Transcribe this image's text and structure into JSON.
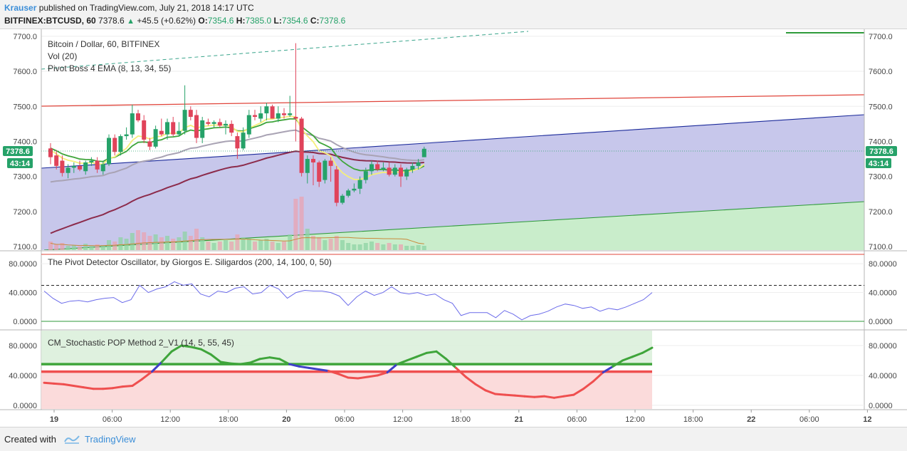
{
  "header": {
    "author": "Krauser",
    "published_on": "published on TradingView.com, July 21, 2018 14:17 UTC",
    "symbol": "BITFINEX:BTCUSD, 60",
    "last": "7378.6",
    "change": "+45.5 (+0.62%)",
    "o_label": "O:",
    "o_value": "7354.6",
    "h_label": "H:",
    "h_value": "7385.0",
    "l_label": "L:",
    "l_value": "7354.6",
    "c_label": "C:",
    "c_value": "7378.6"
  },
  "main_pane": {
    "title": "Bitcoin / Dollar, 60, BITFINEX",
    "vol_label": "Vol (20)",
    "ema_label": "Pivot Boss 4 EMA (8, 13, 34, 55)",
    "y_ticks": [
      "7700.0",
      "7600.0",
      "7500.0",
      "7400.0",
      "7300.0",
      "7200.0",
      "7100.0"
    ],
    "price_badge": "7378.6",
    "countdown_badge": "43:14"
  },
  "osc_pane": {
    "title": "The Pivot Detector Oscillator, by Giorgos E. Siligardos (200, 14, 100, 0, 50)",
    "y_ticks": [
      "80.0000",
      "40.0000",
      "0.0000"
    ]
  },
  "stoch_pane": {
    "title": "CM_Stochastic POP Method 2_V1 (14, 5, 55, 45)",
    "y_ticks": [
      "80.0000",
      "40.0000",
      "0.0000"
    ]
  },
  "x_axis": {
    "ticks": [
      "19",
      "06:00",
      "12:00",
      "18:00",
      "20",
      "06:00",
      "12:00",
      "18:00",
      "21",
      "06:00",
      "12:00",
      "18:00",
      "22",
      "06:00",
      "12"
    ]
  },
  "footer": {
    "created_with": "Created with",
    "brand": "TradingView"
  },
  "colors": {
    "up": "#26a269",
    "down": "#e0435a",
    "channel_fill": "#c4c4ea",
    "green_fill": "#c9edcb",
    "ema_yellow": "#f5ef7a",
    "ema_green": "#3fa53b",
    "ema_gray": "#a9a3b4",
    "ema_maroon": "#8c2b4b"
  },
  "chart_data": [
    {
      "type": "candlestick",
      "title": "Bitcoin / Dollar, 60, BITFINEX",
      "ylim": [
        7090,
        7720
      ],
      "candles": [
        {
          "o": 7380,
          "h": 7395,
          "l": 7335,
          "c": 7355
        },
        {
          "o": 7360,
          "h": 7375,
          "l": 7320,
          "c": 7330
        },
        {
          "o": 7345,
          "h": 7360,
          "l": 7300,
          "c": 7310
        },
        {
          "o": 7310,
          "h": 7335,
          "l": 7295,
          "c": 7325
        },
        {
          "o": 7325,
          "h": 7340,
          "l": 7310,
          "c": 7330
        },
        {
          "o": 7330,
          "h": 7345,
          "l": 7315,
          "c": 7320
        },
        {
          "o": 7315,
          "h": 7345,
          "l": 7305,
          "c": 7340
        },
        {
          "o": 7340,
          "h": 7355,
          "l": 7330,
          "c": 7345
        },
        {
          "o": 7345,
          "h": 7355,
          "l": 7310,
          "c": 7320
        },
        {
          "o": 7315,
          "h": 7345,
          "l": 7305,
          "c": 7335
        },
        {
          "o": 7335,
          "h": 7420,
          "l": 7330,
          "c": 7410
        },
        {
          "o": 7410,
          "h": 7420,
          "l": 7360,
          "c": 7370
        },
        {
          "o": 7370,
          "h": 7420,
          "l": 7360,
          "c": 7415
        },
        {
          "o": 7415,
          "h": 7440,
          "l": 7405,
          "c": 7420
        },
        {
          "o": 7420,
          "h": 7505,
          "l": 7410,
          "c": 7480
        },
        {
          "o": 7480,
          "h": 7490,
          "l": 7455,
          "c": 7460
        },
        {
          "o": 7460,
          "h": 7475,
          "l": 7395,
          "c": 7405
        },
        {
          "o": 7400,
          "h": 7410,
          "l": 7375,
          "c": 7385
        },
        {
          "o": 7385,
          "h": 7445,
          "l": 7380,
          "c": 7435
        },
        {
          "o": 7430,
          "h": 7465,
          "l": 7415,
          "c": 7420
        },
        {
          "o": 7420,
          "h": 7465,
          "l": 7405,
          "c": 7455
        },
        {
          "o": 7455,
          "h": 7470,
          "l": 7415,
          "c": 7420
        },
        {
          "o": 7420,
          "h": 7455,
          "l": 7415,
          "c": 7430
        },
        {
          "o": 7430,
          "h": 7560,
          "l": 7420,
          "c": 7490
        },
        {
          "o": 7490,
          "h": 7500,
          "l": 7460,
          "c": 7470
        },
        {
          "o": 7475,
          "h": 7490,
          "l": 7395,
          "c": 7410
        },
        {
          "o": 7410,
          "h": 7470,
          "l": 7395,
          "c": 7460
        },
        {
          "o": 7455,
          "h": 7465,
          "l": 7445,
          "c": 7450
        },
        {
          "o": 7450,
          "h": 7460,
          "l": 7440,
          "c": 7455
        },
        {
          "o": 7455,
          "h": 7465,
          "l": 7440,
          "c": 7445
        },
        {
          "o": 7445,
          "h": 7460,
          "l": 7420,
          "c": 7450
        },
        {
          "o": 7450,
          "h": 7460,
          "l": 7415,
          "c": 7425
        },
        {
          "o": 7415,
          "h": 7425,
          "l": 7350,
          "c": 7380
        },
        {
          "o": 7380,
          "h": 7440,
          "l": 7375,
          "c": 7425
        },
        {
          "o": 7420,
          "h": 7490,
          "l": 7410,
          "c": 7475
        },
        {
          "o": 7475,
          "h": 7490,
          "l": 7460,
          "c": 7470
        },
        {
          "o": 7465,
          "h": 7500,
          "l": 7455,
          "c": 7480
        },
        {
          "o": 7480,
          "h": 7510,
          "l": 7460,
          "c": 7500
        },
        {
          "o": 7500,
          "h": 7505,
          "l": 7465,
          "c": 7465
        },
        {
          "o": 7465,
          "h": 7500,
          "l": 7455,
          "c": 7480
        },
        {
          "o": 7480,
          "h": 7495,
          "l": 7465,
          "c": 7475
        },
        {
          "o": 7475,
          "h": 7530,
          "l": 7470,
          "c": 7480
        },
        {
          "o": 7470,
          "h": 7680,
          "l": 7400,
          "c": 7465
        },
        {
          "o": 7465,
          "h": 7470,
          "l": 7300,
          "c": 7310
        },
        {
          "o": 7310,
          "h": 7360,
          "l": 7280,
          "c": 7350
        },
        {
          "o": 7350,
          "h": 7360,
          "l": 7275,
          "c": 7340
        },
        {
          "o": 7340,
          "h": 7345,
          "l": 7270,
          "c": 7285
        },
        {
          "o": 7290,
          "h": 7350,
          "l": 7280,
          "c": 7345
        },
        {
          "o": 7345,
          "h": 7355,
          "l": 7285,
          "c": 7330
        },
        {
          "o": 7320,
          "h": 7330,
          "l": 7215,
          "c": 7225
        },
        {
          "o": 7225,
          "h": 7250,
          "l": 7220,
          "c": 7245
        },
        {
          "o": 7245,
          "h": 7265,
          "l": 7240,
          "c": 7260
        },
        {
          "o": 7260,
          "h": 7280,
          "l": 7255,
          "c": 7265
        },
        {
          "o": 7265,
          "h": 7300,
          "l": 7250,
          "c": 7290
        },
        {
          "o": 7290,
          "h": 7325,
          "l": 7280,
          "c": 7315
        },
        {
          "o": 7315,
          "h": 7345,
          "l": 7305,
          "c": 7335
        },
        {
          "o": 7335,
          "h": 7345,
          "l": 7315,
          "c": 7320
        },
        {
          "o": 7320,
          "h": 7340,
          "l": 7315,
          "c": 7325
        },
        {
          "o": 7325,
          "h": 7340,
          "l": 7300,
          "c": 7305
        },
        {
          "o": 7305,
          "h": 7335,
          "l": 7300,
          "c": 7325
        },
        {
          "o": 7325,
          "h": 7335,
          "l": 7270,
          "c": 7300
        },
        {
          "o": 7300,
          "h": 7325,
          "l": 7290,
          "c": 7320
        },
        {
          "o": 7320,
          "h": 7340,
          "l": 7310,
          "c": 7330
        },
        {
          "o": 7330,
          "h": 7350,
          "l": 7320,
          "c": 7340
        },
        {
          "o": 7355,
          "h": 7385,
          "l": 7355,
          "c": 7379
        }
      ],
      "volumes": [
        12,
        8,
        10,
        6,
        7,
        5,
        9,
        6,
        8,
        7,
        14,
        12,
        18,
        16,
        24,
        28,
        25,
        20,
        22,
        18,
        20,
        16,
        18,
        26,
        20,
        30,
        18,
        12,
        10,
        12,
        14,
        12,
        22,
        18,
        16,
        12,
        14,
        16,
        12,
        10,
        12,
        22,
        72,
        75,
        30,
        20,
        18,
        14,
        16,
        20,
        14,
        10,
        8,
        8,
        10,
        12,
        10,
        8,
        10,
        8,
        8,
        6,
        6,
        7,
        6
      ]
    },
    {
      "type": "line",
      "title": "The Pivot Detector Oscillator, by Giorgos E. Siligardos (200, 14, 100, 0, 50)",
      "ylim": [
        -5,
        95
      ],
      "values": [
        42,
        32,
        25,
        28,
        29,
        27,
        30,
        32,
        33,
        26,
        30,
        50,
        40,
        45,
        48,
        55,
        50,
        52,
        38,
        34,
        42,
        40,
        46,
        48,
        38,
        40,
        50,
        45,
        32,
        40,
        43,
        42,
        42,
        40,
        35,
        22,
        34,
        42,
        36,
        40,
        48,
        40,
        38,
        40,
        36,
        38,
        30,
        25,
        8,
        12,
        12,
        12,
        5,
        15,
        10,
        2,
        8,
        10,
        14,
        20,
        24,
        22,
        18,
        20,
        14,
        18,
        16,
        20,
        25,
        30,
        40
      ],
      "reference_lines": [
        50,
        0
      ]
    },
    {
      "type": "line",
      "title": "CM_Stochastic POP Method 2_V1 (14, 5, 55, 45)",
      "ylim": [
        -5,
        100
      ],
      "values": [
        30,
        29,
        28,
        26,
        24,
        22,
        22,
        23,
        25,
        26,
        35,
        45,
        58,
        72,
        80,
        78,
        75,
        68,
        58,
        56,
        55,
        57,
        62,
        64,
        62,
        55,
        52,
        50,
        48,
        46,
        42,
        37,
        36,
        38,
        40,
        44,
        55,
        60,
        65,
        70,
        72,
        62,
        50,
        38,
        28,
        20,
        15,
        14,
        13,
        12,
        11,
        12,
        10,
        12,
        14,
        22,
        32,
        44,
        52,
        60,
        65,
        70,
        77
      ],
      "upper_level": 55,
      "lower_level": 45
    }
  ]
}
